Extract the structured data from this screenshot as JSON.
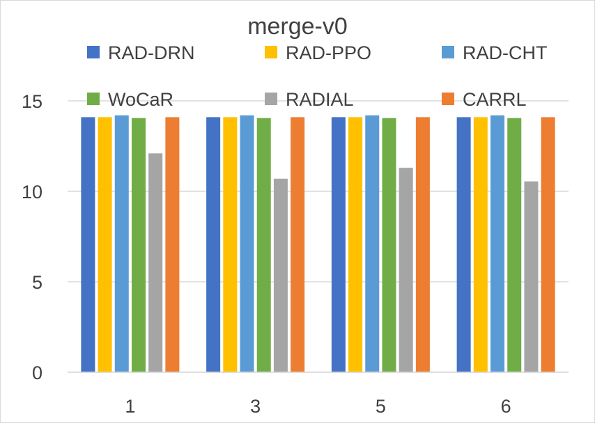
{
  "chart_data": {
    "type": "bar",
    "title": "merge-v0",
    "xlabel": "",
    "ylabel": "",
    "categories": [
      "1",
      "3",
      "5",
      "6"
    ],
    "ylim": [
      0,
      15
    ],
    "yticks": [
      0,
      5,
      10,
      15
    ],
    "grid": true,
    "legend_position": "top",
    "series": [
      {
        "name": "RAD-DRN",
        "color": "#4472C4",
        "values": [
          14.1,
          14.1,
          14.1,
          14.1
        ]
      },
      {
        "name": "RAD-PPO",
        "color": "#FFC000",
        "values": [
          14.1,
          14.1,
          14.1,
          14.1
        ]
      },
      {
        "name": "RAD-CHT",
        "color": "#5B9BD5",
        "values": [
          14.2,
          14.2,
          14.2,
          14.2
        ]
      },
      {
        "name": "WoCaR",
        "color": "#70AD47",
        "values": [
          14.05,
          14.05,
          14.05,
          14.05
        ]
      },
      {
        "name": "RADIAL",
        "color": "#A5A5A5",
        "values": [
          12.1,
          10.7,
          11.3,
          10.55
        ]
      },
      {
        "name": "CARRL",
        "color": "#ED7D31",
        "values": [
          14.1,
          14.1,
          14.1,
          14.1
        ]
      }
    ]
  }
}
